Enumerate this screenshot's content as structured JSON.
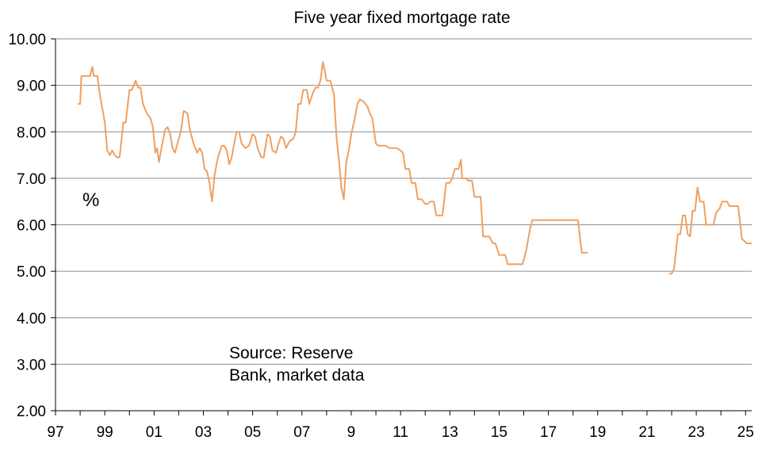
{
  "chart_data": {
    "type": "line",
    "title": "Five year fixed mortgage rate",
    "ylabel": "%",
    "xlabel": "",
    "ylim": [
      2.0,
      10.0
    ],
    "xlim": [
      1997,
      2025.25
    ],
    "y_ticks": [
      "10.00",
      "9.00",
      "8.00",
      "7.00",
      "6.00",
      "5.00",
      "4.00",
      "3.00",
      "2.00"
    ],
    "x_ticks": [
      "97",
      "99",
      "01",
      "03",
      "05",
      "07",
      "9",
      "11",
      "13",
      "15",
      "17",
      "19",
      "21",
      "23",
      "25"
    ],
    "annotation_lines": [
      "Source: Reserve",
      "Bank, market data"
    ],
    "series_color": "#f0a060",
    "series": [
      {
        "name": "Five year fixed mortgage rate",
        "segments": [
          [
            [
              1997.9,
              8.6
            ],
            [
              1998.0,
              8.6
            ],
            [
              1998.05,
              9.2
            ],
            [
              1998.4,
              9.2
            ],
            [
              1998.5,
              9.4
            ],
            [
              1998.55,
              9.2
            ],
            [
              1998.7,
              9.2
            ],
            [
              1998.8,
              8.8
            ],
            [
              1999.0,
              8.2
            ],
            [
              1999.1,
              7.6
            ],
            [
              1999.2,
              7.5
            ],
            [
              1999.3,
              7.6
            ],
            [
              1999.4,
              7.5
            ],
            [
              1999.5,
              7.45
            ],
            [
              1999.6,
              7.45
            ],
            [
              1999.75,
              8.2
            ],
            [
              1999.85,
              8.2
            ],
            [
              2000.0,
              8.9
            ],
            [
              2000.1,
              8.9
            ],
            [
              2000.25,
              9.1
            ],
            [
              2000.35,
              8.95
            ],
            [
              2000.45,
              8.95
            ],
            [
              2000.55,
              8.6
            ],
            [
              2000.7,
              8.4
            ],
            [
              2000.85,
              8.3
            ],
            [
              2000.95,
              8.1
            ],
            [
              2001.05,
              7.55
            ],
            [
              2001.12,
              7.65
            ],
            [
              2001.2,
              7.35
            ],
            [
              2001.3,
              7.65
            ],
            [
              2001.45,
              8.05
            ],
            [
              2001.55,
              8.1
            ],
            [
              2001.65,
              7.95
            ],
            [
              2001.75,
              7.65
            ],
            [
              2001.85,
              7.55
            ],
            [
              2002.0,
              7.85
            ],
            [
              2002.1,
              8.05
            ],
            [
              2002.2,
              8.45
            ],
            [
              2002.35,
              8.4
            ],
            [
              2002.45,
              8.05
            ],
            [
              2002.6,
              7.75
            ],
            [
              2002.75,
              7.55
            ],
            [
              2002.85,
              7.65
            ],
            [
              2002.95,
              7.55
            ],
            [
              2003.05,
              7.2
            ],
            [
              2003.15,
              7.15
            ],
            [
              2003.25,
              6.9
            ],
            [
              2003.35,
              6.5
            ],
            [
              2003.45,
              7.05
            ],
            [
              2003.55,
              7.35
            ],
            [
              2003.65,
              7.55
            ],
            [
              2003.75,
              7.7
            ],
            [
              2003.85,
              7.7
            ],
            [
              2003.95,
              7.6
            ],
            [
              2004.05,
              7.3
            ],
            [
              2004.15,
              7.45
            ],
            [
              2004.25,
              7.75
            ],
            [
              2004.35,
              8.0
            ],
            [
              2004.45,
              8.0
            ],
            [
              2004.55,
              7.75
            ],
            [
              2004.7,
              7.65
            ],
            [
              2004.85,
              7.7
            ],
            [
              2005.0,
              7.95
            ],
            [
              2005.1,
              7.9
            ],
            [
              2005.2,
              7.65
            ],
            [
              2005.35,
              7.45
            ],
            [
              2005.45,
              7.45
            ],
            [
              2005.6,
              7.95
            ],
            [
              2005.7,
              7.9
            ],
            [
              2005.8,
              7.6
            ],
            [
              2005.95,
              7.55
            ],
            [
              2006.05,
              7.75
            ],
            [
              2006.15,
              7.9
            ],
            [
              2006.25,
              7.85
            ],
            [
              2006.35,
              7.65
            ],
            [
              2006.5,
              7.8
            ],
            [
              2006.65,
              7.85
            ],
            [
              2006.75,
              8.0
            ],
            [
              2006.85,
              8.6
            ],
            [
              2006.95,
              8.6
            ],
            [
              2007.05,
              8.9
            ],
            [
              2007.2,
              8.9
            ],
            [
              2007.3,
              8.6
            ],
            [
              2007.45,
              8.85
            ],
            [
              2007.55,
              8.95
            ],
            [
              2007.65,
              8.95
            ],
            [
              2007.75,
              9.1
            ],
            [
              2007.85,
              9.5
            ],
            [
              2007.95,
              9.25
            ],
            [
              2008.0,
              9.1
            ],
            [
              2008.15,
              9.1
            ],
            [
              2008.3,
              8.8
            ],
            [
              2008.4,
              7.9
            ],
            [
              2008.5,
              7.4
            ],
            [
              2008.6,
              6.8
            ],
            [
              2008.7,
              6.55
            ],
            [
              2008.8,
              7.35
            ],
            [
              2008.9,
              7.6
            ],
            [
              2009.0,
              7.95
            ],
            [
              2009.15,
              8.3
            ],
            [
              2009.25,
              8.6
            ],
            [
              2009.35,
              8.7
            ],
            [
              2009.5,
              8.65
            ],
            [
              2009.65,
              8.55
            ],
            [
              2009.75,
              8.4
            ],
            [
              2009.85,
              8.3
            ],
            [
              2010.0,
              7.75
            ],
            [
              2010.1,
              7.7
            ],
            [
              2010.4,
              7.7
            ],
            [
              2010.55,
              7.65
            ],
            [
              2010.85,
              7.65
            ],
            [
              2011.0,
              7.6
            ],
            [
              2011.1,
              7.55
            ],
            [
              2011.2,
              7.2
            ],
            [
              2011.35,
              7.2
            ],
            [
              2011.45,
              6.9
            ],
            [
              2011.6,
              6.9
            ],
            [
              2011.7,
              6.55
            ],
            [
              2011.85,
              6.55
            ],
            [
              2012.0,
              6.45
            ],
            [
              2012.1,
              6.45
            ],
            [
              2012.2,
              6.5
            ],
            [
              2012.35,
              6.5
            ],
            [
              2012.45,
              6.2
            ],
            [
              2012.7,
              6.2
            ],
            [
              2012.85,
              6.9
            ],
            [
              2013.0,
              6.9
            ],
            [
              2013.1,
              7.0
            ],
            [
              2013.2,
              7.2
            ],
            [
              2013.35,
              7.2
            ],
            [
              2013.45,
              7.4
            ],
            [
              2013.5,
              7.0
            ],
            [
              2013.65,
              7.0
            ],
            [
              2013.75,
              6.95
            ],
            [
              2013.9,
              6.95
            ],
            [
              2014.0,
              6.6
            ],
            [
              2014.25,
              6.6
            ],
            [
              2014.35,
              5.75
            ],
            [
              2014.6,
              5.75
            ],
            [
              2014.75,
              5.6
            ],
            [
              2014.85,
              5.6
            ],
            [
              2015.0,
              5.35
            ],
            [
              2015.25,
              5.35
            ],
            [
              2015.35,
              5.15
            ],
            [
              2015.55,
              5.15
            ],
            [
              2015.95,
              5.15
            ],
            [
              2016.1,
              5.45
            ],
            [
              2016.25,
              5.9
            ],
            [
              2016.35,
              6.1
            ],
            [
              2016.6,
              6.1
            ],
            [
              2018.2,
              6.1
            ],
            [
              2018.35,
              5.4
            ],
            [
              2018.6,
              5.4
            ]
          ],
          [
            [
              2021.9,
              4.95
            ],
            [
              2022.0,
              4.95
            ],
            [
              2022.1,
              5.05
            ],
            [
              2022.25,
              5.8
            ],
            [
              2022.35,
              5.8
            ],
            [
              2022.45,
              6.2
            ],
            [
              2022.55,
              6.2
            ],
            [
              2022.65,
              5.8
            ],
            [
              2022.75,
              5.75
            ],
            [
              2022.85,
              6.3
            ],
            [
              2022.95,
              6.3
            ],
            [
              2023.05,
              6.8
            ],
            [
              2023.15,
              6.5
            ],
            [
              2023.3,
              6.5
            ],
            [
              2023.4,
              6.0
            ],
            [
              2023.55,
              6.0
            ],
            [
              2023.7,
              6.0
            ],
            [
              2023.8,
              6.25
            ],
            [
              2023.95,
              6.35
            ],
            [
              2024.05,
              6.5
            ],
            [
              2024.25,
              6.5
            ],
            [
              2024.35,
              6.4
            ],
            [
              2024.7,
              6.4
            ],
            [
              2024.85,
              5.7
            ],
            [
              2024.95,
              5.65
            ],
            [
              2025.05,
              5.6
            ],
            [
              2025.25,
              5.6
            ]
          ]
        ]
      }
    ]
  }
}
